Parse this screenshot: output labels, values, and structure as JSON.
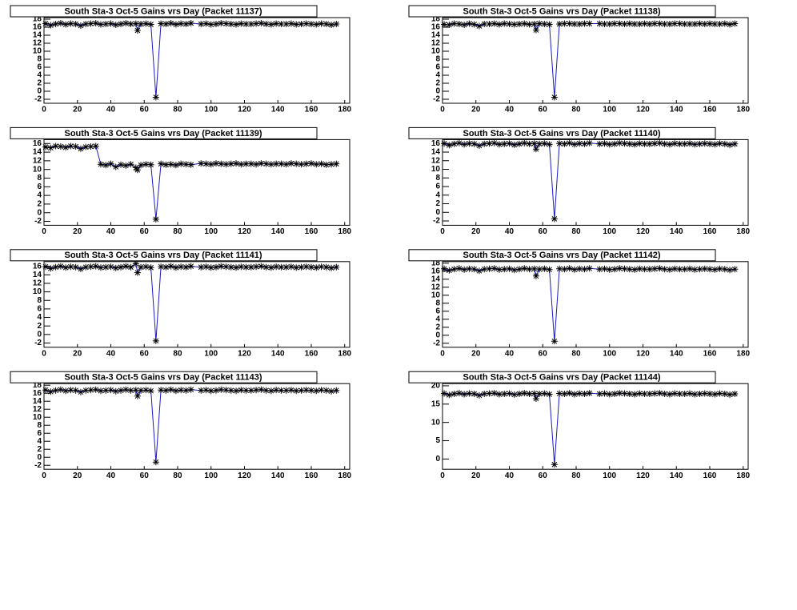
{
  "chart_data": [
    {
      "type": "line",
      "title": "South Sta-3 Oct-5 Gains vrs Day (Packet 11137)",
      "color": "#1a1acc",
      "x": [
        1,
        4,
        7,
        10,
        13,
        16,
        19,
        22,
        25,
        28,
        31,
        34,
        37,
        40,
        43,
        46,
        49,
        52,
        55,
        56,
        58,
        61,
        64,
        67,
        70,
        73,
        76,
        79,
        82,
        85,
        88,
        94,
        97,
        100,
        103,
        106,
        109,
        112,
        115,
        118,
        121,
        124,
        127,
        130,
        133,
        136,
        139,
        142,
        145,
        148,
        151,
        154,
        157,
        160,
        163,
        166,
        169,
        172,
        175
      ],
      "values": [
        16.9,
        16.5,
        16.8,
        17.0,
        16.7,
        16.9,
        16.8,
        16.4,
        16.8,
        16.9,
        17.0,
        16.7,
        16.8,
        16.9,
        16.6,
        16.8,
        17.0,
        16.8,
        16.9,
        15.2,
        16.8,
        16.9,
        16.7,
        -1.5,
        16.9,
        16.8,
        17.0,
        16.7,
        16.9,
        16.8,
        17.0,
        16.8,
        16.9,
        16.7,
        16.8,
        17.0,
        16.9,
        16.8,
        16.7,
        16.9,
        16.8,
        16.8,
        16.9,
        17.0,
        16.8,
        16.7,
        16.9,
        16.8,
        16.8,
        16.9,
        16.7,
        16.8,
        16.9,
        16.8,
        16.7,
        16.9,
        16.8,
        16.6,
        16.8
      ],
      "xlim": [
        0,
        183
      ],
      "xticks": [
        0,
        20,
        40,
        60,
        80,
        100,
        120,
        140,
        160,
        180
      ],
      "ylim": [
        -3,
        18.4
      ],
      "yticks": [
        -2,
        0,
        2,
        4,
        6,
        8,
        10,
        12,
        14,
        16,
        18
      ]
    },
    {
      "type": "line",
      "title": "South Sta-3 Oct-5 Gains vrs Day (Packet 11138)",
      "color": "#1a1acc",
      "x": [
        1,
        4,
        7,
        10,
        13,
        16,
        19,
        22,
        25,
        28,
        31,
        34,
        37,
        40,
        43,
        46,
        49,
        52,
        55,
        56,
        58,
        61,
        64,
        67,
        70,
        73,
        76,
        79,
        82,
        85,
        88,
        94,
        97,
        100,
        103,
        106,
        109,
        112,
        115,
        118,
        121,
        124,
        127,
        130,
        133,
        136,
        139,
        142,
        145,
        148,
        151,
        154,
        157,
        160,
        163,
        166,
        169,
        172,
        175
      ],
      "values": [
        16.7,
        16.6,
        16.9,
        16.8,
        16.6,
        16.9,
        16.7,
        16.3,
        16.8,
        16.8,
        16.9,
        16.7,
        16.9,
        16.8,
        16.7,
        16.8,
        16.9,
        16.7,
        16.8,
        15.3,
        16.9,
        16.8,
        16.7,
        -1.5,
        16.8,
        16.9,
        16.9,
        16.8,
        16.8,
        16.9,
        16.9,
        16.9,
        16.8,
        16.8,
        16.9,
        16.9,
        16.8,
        16.9,
        16.8,
        16.8,
        16.9,
        16.8,
        16.9,
        16.9,
        16.8,
        16.8,
        16.9,
        16.9,
        16.8,
        16.8,
        16.8,
        16.9,
        16.8,
        16.9,
        16.8,
        16.8,
        16.9,
        16.7,
        16.9
      ],
      "xlim": [
        0,
        183
      ],
      "xticks": [
        0,
        20,
        40,
        60,
        80,
        100,
        120,
        140,
        160,
        180
      ],
      "ylim": [
        -3,
        18.4
      ],
      "yticks": [
        -2,
        0,
        2,
        4,
        6,
        8,
        10,
        12,
        14,
        16,
        18
      ]
    },
    {
      "type": "line",
      "title": "South Sta-3 Oct-5 Gains vrs Day (Packet 11139)",
      "color": "#1a1acc",
      "x": [
        1,
        4,
        7,
        10,
        13,
        16,
        19,
        22,
        25,
        28,
        31,
        34,
        37,
        40,
        43,
        46,
        49,
        52,
        55,
        56,
        58,
        61,
        64,
        67,
        70,
        73,
        76,
        79,
        82,
        85,
        88,
        94,
        97,
        100,
        103,
        106,
        109,
        112,
        115,
        118,
        121,
        124,
        127,
        130,
        133,
        136,
        139,
        142,
        145,
        148,
        151,
        154,
        157,
        160,
        163,
        166,
        169,
        172,
        175
      ],
      "values": [
        15.2,
        15.0,
        15.4,
        15.3,
        15.1,
        15.4,
        15.3,
        14.8,
        15.2,
        15.3,
        15.4,
        11.2,
        11.0,
        11.3,
        10.6,
        11.1,
        10.9,
        11.2,
        10.4,
        9.9,
        11.0,
        11.2,
        11.1,
        -1.5,
        11.3,
        11.1,
        11.2,
        11.0,
        11.3,
        11.2,
        11.1,
        11.4,
        11.3,
        11.2,
        11.4,
        11.3,
        11.2,
        11.3,
        11.4,
        11.2,
        11.3,
        11.3,
        11.2,
        11.4,
        11.3,
        11.2,
        11.3,
        11.3,
        11.2,
        11.4,
        11.3,
        11.2,
        11.3,
        11.4,
        11.2,
        11.3,
        11.1,
        11.2,
        11.3
      ],
      "xlim": [
        0,
        183
      ],
      "xticks": [
        0,
        20,
        40,
        60,
        80,
        100,
        120,
        140,
        160,
        180
      ],
      "ylim": [
        -2.9,
        16.9
      ],
      "yticks": [
        -2,
        0,
        2,
        4,
        6,
        8,
        10,
        12,
        14,
        16
      ]
    },
    {
      "type": "line",
      "title": "South Sta-3 Oct-5 Gains vrs Day (Packet 11140)",
      "color": "#1a1acc",
      "x": [
        1,
        4,
        7,
        10,
        13,
        16,
        19,
        22,
        25,
        28,
        31,
        34,
        37,
        40,
        43,
        46,
        49,
        52,
        55,
        56,
        58,
        61,
        64,
        67,
        70,
        73,
        76,
        79,
        82,
        85,
        88,
        94,
        97,
        100,
        103,
        106,
        109,
        112,
        115,
        118,
        121,
        124,
        127,
        130,
        133,
        136,
        139,
        142,
        145,
        148,
        151,
        154,
        157,
        160,
        163,
        166,
        169,
        172,
        175
      ],
      "values": [
        16.0,
        15.6,
        15.9,
        16.1,
        15.8,
        16.0,
        15.9,
        15.5,
        15.9,
        16.0,
        16.1,
        15.8,
        15.9,
        16.0,
        15.7,
        15.9,
        16.1,
        15.9,
        16.0,
        14.7,
        15.9,
        16.0,
        15.8,
        -1.5,
        16.0,
        15.9,
        16.1,
        15.8,
        16.0,
        15.9,
        16.1,
        15.9,
        16.0,
        15.8,
        15.9,
        16.1,
        16.0,
        15.9,
        15.8,
        16.0,
        15.9,
        15.9,
        16.0,
        16.1,
        15.9,
        15.8,
        16.0,
        15.9,
        15.9,
        16.0,
        15.8,
        15.9,
        16.0,
        15.9,
        15.8,
        16.0,
        15.9,
        15.7,
        15.9
      ],
      "xlim": [
        0,
        183
      ],
      "xticks": [
        0,
        20,
        40,
        60,
        80,
        100,
        120,
        140,
        160,
        180
      ],
      "ylim": [
        -3,
        16.9
      ],
      "yticks": [
        -2,
        0,
        2,
        4,
        6,
        8,
        10,
        12,
        14,
        16
      ]
    },
    {
      "type": "line",
      "title": "South Sta-3 Oct-5 Gains vrs Day (Packet 11141)",
      "color": "#1a1acc",
      "x": [
        1,
        4,
        7,
        10,
        13,
        16,
        19,
        22,
        25,
        28,
        31,
        34,
        37,
        40,
        43,
        46,
        49,
        52,
        55,
        56,
        58,
        61,
        64,
        67,
        70,
        73,
        76,
        79,
        82,
        85,
        88,
        94,
        97,
        100,
        103,
        106,
        109,
        112,
        115,
        118,
        121,
        124,
        127,
        130,
        133,
        136,
        139,
        142,
        145,
        148,
        151,
        154,
        157,
        160,
        163,
        166,
        169,
        172,
        175
      ],
      "values": [
        15.9,
        15.5,
        15.8,
        16.0,
        15.7,
        15.9,
        15.8,
        15.4,
        15.8,
        15.9,
        16.0,
        15.7,
        15.8,
        15.9,
        15.6,
        15.8,
        16.0,
        15.8,
        16.6,
        14.5,
        15.8,
        15.9,
        15.7,
        -1.5,
        15.9,
        15.8,
        16.0,
        15.7,
        15.9,
        15.8,
        16.0,
        15.8,
        15.9,
        15.7,
        15.8,
        16.0,
        15.9,
        15.8,
        15.7,
        15.9,
        15.8,
        15.8,
        15.9,
        16.0,
        15.8,
        15.7,
        15.9,
        15.8,
        15.8,
        15.9,
        15.7,
        15.8,
        15.9,
        15.8,
        15.7,
        15.9,
        15.8,
        15.6,
        15.8
      ],
      "xlim": [
        0,
        183
      ],
      "xticks": [
        0,
        20,
        40,
        60,
        80,
        100,
        120,
        140,
        160,
        180
      ],
      "ylim": [
        -3,
        17.1
      ],
      "yticks": [
        -2,
        0,
        2,
        4,
        6,
        8,
        10,
        12,
        14,
        16
      ]
    },
    {
      "type": "line",
      "title": "South Sta-3 Oct-5 Gains vrs Day (Packet 11142)",
      "color": "#1a1acc",
      "x": [
        1,
        4,
        7,
        10,
        13,
        16,
        19,
        22,
        25,
        28,
        31,
        34,
        37,
        40,
        43,
        46,
        49,
        52,
        55,
        56,
        58,
        61,
        64,
        67,
        70,
        73,
        76,
        79,
        82,
        85,
        88,
        94,
        97,
        100,
        103,
        106,
        109,
        112,
        115,
        118,
        121,
        124,
        127,
        130,
        133,
        136,
        139,
        142,
        145,
        148,
        151,
        154,
        157,
        160,
        163,
        166,
        169,
        172,
        175
      ],
      "values": [
        16.6,
        16.2,
        16.5,
        16.7,
        16.4,
        16.6,
        16.5,
        16.1,
        16.5,
        16.6,
        16.7,
        16.4,
        16.5,
        16.6,
        16.3,
        16.5,
        16.7,
        16.5,
        16.6,
        14.8,
        16.5,
        16.6,
        16.4,
        -1.5,
        16.6,
        16.5,
        16.7,
        16.4,
        16.6,
        16.5,
        16.7,
        16.5,
        16.6,
        16.4,
        16.5,
        16.7,
        16.6,
        16.5,
        16.4,
        16.6,
        16.5,
        16.5,
        16.6,
        16.7,
        16.5,
        16.4,
        16.6,
        16.5,
        16.5,
        16.6,
        16.4,
        16.5,
        16.6,
        16.5,
        16.4,
        16.6,
        16.5,
        16.3,
        16.5
      ],
      "xlim": [
        0,
        183
      ],
      "xticks": [
        0,
        20,
        40,
        60,
        80,
        100,
        120,
        140,
        160,
        180
      ],
      "ylim": [
        -3,
        18.4
      ],
      "yticks": [
        -2,
        0,
        2,
        4,
        6,
        8,
        10,
        12,
        14,
        16,
        18
      ]
    },
    {
      "type": "line",
      "title": "South Sta-3 Oct-5 Gains vrs Day (Packet 11143)",
      "color": "#1a1acc",
      "x": [
        1,
        4,
        7,
        10,
        13,
        16,
        19,
        22,
        25,
        28,
        31,
        34,
        37,
        40,
        43,
        46,
        49,
        52,
        55,
        56,
        58,
        61,
        64,
        67,
        70,
        73,
        76,
        79,
        82,
        85,
        88,
        94,
        97,
        100,
        103,
        106,
        109,
        112,
        115,
        118,
        121,
        124,
        127,
        130,
        133,
        136,
        139,
        142,
        145,
        148,
        151,
        154,
        157,
        160,
        163,
        166,
        169,
        172,
        175
      ],
      "values": [
        16.8,
        16.4,
        16.7,
        16.9,
        16.6,
        16.8,
        16.7,
        16.3,
        16.7,
        16.8,
        16.9,
        16.6,
        16.7,
        16.8,
        16.5,
        16.7,
        16.9,
        16.7,
        16.8,
        15.3,
        16.7,
        16.8,
        16.6,
        -1.2,
        16.8,
        16.7,
        16.9,
        16.6,
        16.8,
        16.7,
        16.9,
        16.7,
        16.8,
        16.6,
        16.7,
        16.9,
        16.8,
        16.7,
        16.6,
        16.8,
        16.7,
        16.7,
        16.8,
        16.9,
        16.7,
        16.6,
        16.8,
        16.7,
        16.7,
        16.8,
        16.6,
        16.7,
        16.8,
        16.7,
        16.6,
        16.8,
        16.7,
        16.5,
        16.7
      ],
      "xlim": [
        0,
        183
      ],
      "xticks": [
        0,
        20,
        40,
        60,
        80,
        100,
        120,
        140,
        160,
        180
      ],
      "ylim": [
        -3,
        18.4
      ],
      "yticks": [
        -2,
        0,
        2,
        4,
        6,
        8,
        10,
        12,
        14,
        16,
        18
      ]
    },
    {
      "type": "line",
      "title": "South Sta-3 Oct-5 Gains vrs Day (Packet 11144)",
      "color": "#1a1acc",
      "x": [
        1,
        4,
        7,
        10,
        13,
        16,
        19,
        22,
        25,
        28,
        31,
        34,
        37,
        40,
        43,
        46,
        49,
        52,
        55,
        56,
        58,
        61,
        64,
        67,
        70,
        73,
        76,
        79,
        82,
        85,
        88,
        94,
        97,
        100,
        103,
        106,
        109,
        112,
        115,
        118,
        121,
        124,
        127,
        130,
        133,
        136,
        139,
        142,
        145,
        148,
        151,
        154,
        157,
        160,
        163,
        166,
        169,
        172,
        175
      ],
      "values": [
        17.9,
        17.5,
        17.8,
        18.0,
        17.7,
        17.9,
        17.8,
        17.4,
        17.8,
        17.9,
        18.0,
        17.7,
        17.8,
        17.9,
        17.6,
        17.8,
        18.0,
        17.8,
        17.9,
        16.5,
        17.8,
        17.9,
        17.7,
        -1.5,
        17.9,
        17.8,
        18.0,
        17.7,
        17.9,
        17.8,
        18.0,
        17.8,
        17.9,
        17.7,
        17.8,
        18.0,
        17.9,
        17.8,
        17.7,
        17.9,
        17.8,
        17.8,
        17.9,
        18.0,
        17.8,
        17.7,
        17.9,
        17.8,
        17.8,
        17.9,
        17.7,
        17.8,
        17.9,
        17.8,
        17.7,
        17.9,
        17.8,
        17.6,
        17.8
      ],
      "xlim": [
        0,
        183
      ],
      "xticks": [
        0,
        20,
        40,
        60,
        80,
        100,
        120,
        140,
        160,
        180
      ],
      "ylim": [
        -2.8,
        20.6
      ],
      "yticks": [
        0,
        5,
        10,
        15,
        20
      ]
    }
  ]
}
